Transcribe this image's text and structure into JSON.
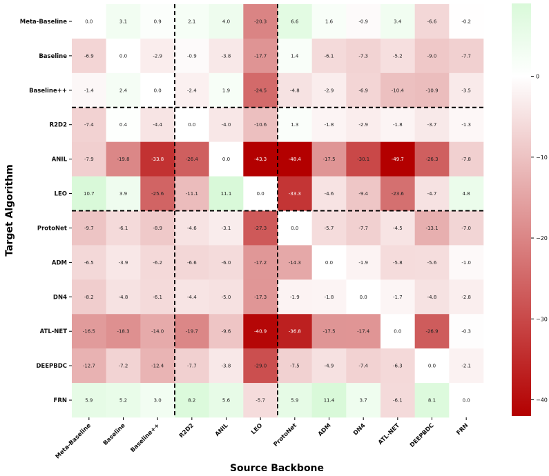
{
  "chart_data": {
    "type": "heatmap",
    "xlabel": "Source Backbone",
    "ylabel": "Target Algorithm",
    "x_categories": [
      "Meta-Baseline",
      "Baseline",
      "Baseline++",
      "R2D2",
      "ANIL",
      "LEO",
      "ProtoNet",
      "ADM",
      "DN4",
      "ATL-NET",
      "DEEPBDC",
      "FRN"
    ],
    "y_categories": [
      "Meta-Baseline",
      "Baseline",
      "Baseline++",
      "R2D2",
      "ANIL",
      "LEO",
      "ProtoNet",
      "ADM",
      "DN4",
      "ATL-NET",
      "DEEPBDC",
      "FRN"
    ],
    "values": [
      [
        0.0,
        3.1,
        0.9,
        2.1,
        4.0,
        -20.3,
        6.6,
        1.6,
        -0.9,
        3.4,
        -6.6,
        -0.2
      ],
      [
        -6.9,
        0.0,
        -2.9,
        -0.9,
        -3.8,
        -17.7,
        1.4,
        -6.1,
        -7.3,
        -5.2,
        -9.0,
        -7.7
      ],
      [
        -1.4,
        2.4,
        0.0,
        -2.4,
        1.9,
        -24.5,
        -4.8,
        -2.9,
        -6.9,
        -10.4,
        -10.9,
        -3.5
      ],
      [
        -7.4,
        0.4,
        -4.4,
        0.0,
        -4.0,
        -10.6,
        1.3,
        -1.8,
        -2.9,
        -1.8,
        -3.7,
        -1.3
      ],
      [
        -7.9,
        -19.8,
        -33.8,
        -26.4,
        0.0,
        -43.3,
        -48.4,
        -17.5,
        -30.1,
        -49.7,
        -26.3,
        -7.8
      ],
      [
        10.7,
        3.9,
        -25.6,
        -11.1,
        11.1,
        0.0,
        -33.3,
        -4.6,
        -9.4,
        -23.6,
        -4.7,
        4.8
      ],
      [
        -9.7,
        -6.1,
        -8.9,
        -4.6,
        -3.1,
        -27.3,
        0.0,
        -5.7,
        -7.7,
        -4.5,
        -13.1,
        -7.0
      ],
      [
        -6.5,
        -3.9,
        -6.2,
        -6.6,
        -6.0,
        -17.2,
        -14.3,
        0.0,
        -1.9,
        -5.8,
        -5.6,
        -1.0
      ],
      [
        -8.2,
        -4.8,
        -6.1,
        -4.4,
        -5.0,
        -17.3,
        -1.9,
        -1.8,
        0.0,
        -1.7,
        -4.8,
        -2.8
      ],
      [
        -16.5,
        -18.3,
        -14.0,
        -19.7,
        -9.6,
        -40.9,
        -36.8,
        -17.5,
        -17.4,
        0.0,
        -26.9,
        -0.3
      ],
      [
        -12.7,
        -7.2,
        -12.4,
        -7.7,
        -3.8,
        -29.0,
        -7.5,
        -4.9,
        -7.4,
        -6.3,
        0.0,
        -2.1
      ],
      [
        5.9,
        5.2,
        3.0,
        8.2,
        5.6,
        -5.7,
        5.9,
        11.4,
        3.7,
        -6.1,
        8.1,
        0.0
      ]
    ],
    "value_format": "one decimal",
    "group_separators": {
      "after_column_indices": [
        2,
        5
      ],
      "after_row_indices": [
        2,
        5
      ],
      "style": "black dashed"
    },
    "colorbar": {
      "ticks": [
        0,
        -10,
        -20,
        -30,
        -40
      ],
      "range": [
        -42,
        9
      ],
      "colors": {
        "min": "#b30000",
        "zero": "#ffffff",
        "max": "#d9f9d9"
      }
    },
    "grid": false,
    "legend": "colorbar on right"
  }
}
